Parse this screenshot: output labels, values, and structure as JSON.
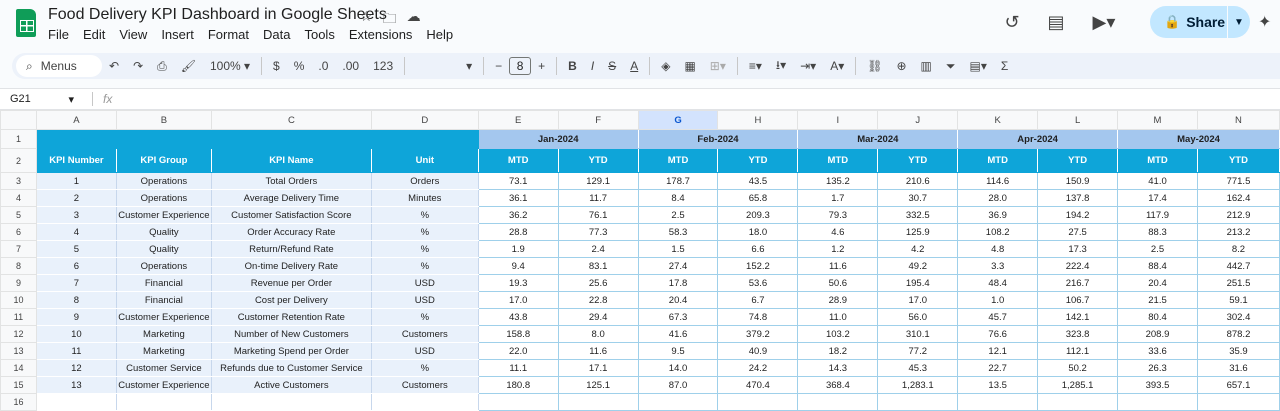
{
  "app": {
    "title": "Food Delivery KPI Dashboard in Google Sheets",
    "title_icons": [
      "star-icon",
      "folder-move-icon",
      "cloud-status-icon"
    ],
    "menus": [
      "File",
      "Edit",
      "View",
      "Insert",
      "Format",
      "Data",
      "Tools",
      "Extensions",
      "Help"
    ],
    "share_label": "Share",
    "accent": "#c2e7ff"
  },
  "toolbar": {
    "search_label": "Menus",
    "zoom": "100%",
    "currency": "$",
    "percent": "%",
    "dec_decrease": ".0",
    "dec_increase": ".00",
    "number_format": "123",
    "font_size": "8",
    "minus": "−",
    "plus": "+",
    "bold": "B",
    "italic": "I",
    "text_color": "A",
    "sum": "Σ"
  },
  "formula_bar": {
    "cell_ref": "G21",
    "fx": "fx"
  },
  "sheet": {
    "selected_column": "G",
    "column_letters": [
      "A",
      "B",
      "C",
      "D",
      "E",
      "F",
      "G",
      "H",
      "I",
      "J",
      "K",
      "L",
      "M",
      "N"
    ],
    "row_numbers": [
      "1",
      "2",
      "3",
      "4",
      "5",
      "6",
      "7",
      "8",
      "9",
      "10",
      "11",
      "12",
      "13",
      "14",
      "15",
      "16"
    ],
    "header_colors": {
      "primary": "#0ea5d9",
      "month": "#a4c7ee",
      "label_fill": "#e9f1fb"
    },
    "headers": [
      "KPI Number",
      "KPI Group",
      "KPI Name",
      "Unit"
    ],
    "months": [
      "Jan-2024",
      "Feb-2024",
      "Mar-2024",
      "Apr-2024",
      "May-2024"
    ],
    "sub_headers": [
      "MTD",
      "YTD",
      "MTD",
      "YTD",
      "MTD",
      "YTD",
      "MTD",
      "YTD",
      "MTD",
      "YTD"
    ],
    "rows": [
      [
        "1",
        "Operations",
        "Total Orders",
        "Orders",
        "73.1",
        "129.1",
        "178.7",
        "43.5",
        "135.2",
        "210.6",
        "114.6",
        "150.9",
        "41.0",
        "771.5"
      ],
      [
        "2",
        "Operations",
        "Average Delivery Time",
        "Minutes",
        "36.1",
        "11.7",
        "8.4",
        "65.8",
        "1.7",
        "30.7",
        "28.0",
        "137.8",
        "17.4",
        "162.4"
      ],
      [
        "3",
        "Customer Experience",
        "Customer Satisfaction Score",
        "%",
        "36.2",
        "76.1",
        "2.5",
        "209.3",
        "79.3",
        "332.5",
        "36.9",
        "194.2",
        "117.9",
        "212.9"
      ],
      [
        "4",
        "Quality",
        "Order Accuracy Rate",
        "%",
        "28.8",
        "77.3",
        "58.3",
        "18.0",
        "4.6",
        "125.9",
        "108.2",
        "27.5",
        "88.3",
        "213.2"
      ],
      [
        "5",
        "Quality",
        "Return/Refund Rate",
        "%",
        "1.9",
        "2.4",
        "1.5",
        "6.6",
        "1.2",
        "4.2",
        "4.8",
        "17.3",
        "2.5",
        "8.2"
      ],
      [
        "6",
        "Operations",
        "On-time Delivery Rate",
        "%",
        "9.4",
        "83.1",
        "27.4",
        "152.2",
        "11.6",
        "49.2",
        "3.3",
        "222.4",
        "88.4",
        "442.7"
      ],
      [
        "7",
        "Financial",
        "Revenue per Order",
        "USD",
        "19.3",
        "25.6",
        "17.8",
        "53.6",
        "50.6",
        "195.4",
        "48.4",
        "216.7",
        "20.4",
        "251.5"
      ],
      [
        "8",
        "Financial",
        "Cost per Delivery",
        "USD",
        "17.0",
        "22.8",
        "20.4",
        "6.7",
        "28.9",
        "17.0",
        "1.0",
        "106.7",
        "21.5",
        "59.1"
      ],
      [
        "9",
        "Customer Experience",
        "Customer Retention Rate",
        "%",
        "43.8",
        "29.4",
        "67.3",
        "74.8",
        "11.0",
        "56.0",
        "45.7",
        "142.1",
        "80.4",
        "302.4"
      ],
      [
        "10",
        "Marketing",
        "Number of New Customers",
        "Customers",
        "158.8",
        "8.0",
        "41.6",
        "379.2",
        "103.2",
        "310.1",
        "76.6",
        "323.8",
        "208.9",
        "878.2"
      ],
      [
        "11",
        "Marketing",
        "Marketing Spend per Order",
        "USD",
        "22.0",
        "11.6",
        "9.5",
        "40.9",
        "18.2",
        "77.2",
        "12.1",
        "112.1",
        "33.6",
        "35.9"
      ],
      [
        "12",
        "Customer Service",
        "Refunds due to Customer Service",
        "%",
        "11.1",
        "17.1",
        "14.0",
        "24.2",
        "14.3",
        "45.3",
        "22.7",
        "50.2",
        "26.3",
        "31.6"
      ],
      [
        "13",
        "Customer Experience",
        "Active Customers",
        "Customers",
        "180.8",
        "125.1",
        "87.0",
        "470.4",
        "368.4",
        "1,283.1",
        "13.5",
        "1,285.1",
        "393.5",
        "657.1"
      ]
    ]
  }
}
